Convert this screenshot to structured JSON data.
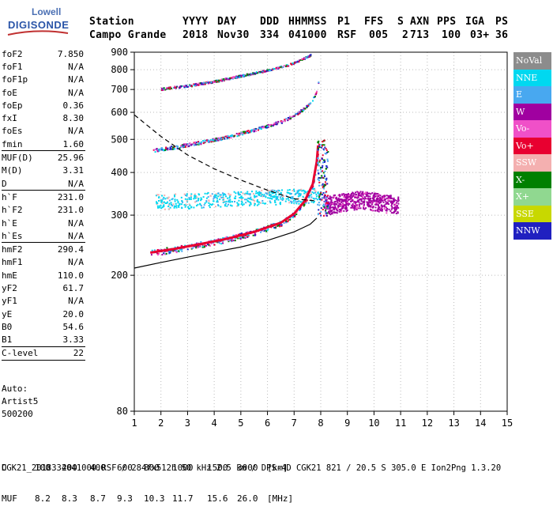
{
  "logo": {
    "line1": "Lowell",
    "line2": "DIGISONDE"
  },
  "header": {
    "labels": [
      "Station",
      "YYYY",
      "DAY",
      "DDD",
      "HHMMSS",
      "P1",
      "FFS",
      "S",
      "AXN",
      "PPS",
      "IGA",
      "PS"
    ],
    "values": [
      "Campo Grande",
      "2018",
      "Nov30",
      "334",
      "041000",
      "RSF",
      "005",
      "2",
      "713",
      "100",
      "03+",
      "36"
    ]
  },
  "params": [
    {
      "name": "foF2",
      "value": "7.850",
      "sep": false
    },
    {
      "name": "foF1",
      "value": "N/A",
      "sep": false
    },
    {
      "name": "foF1p",
      "value": "N/A",
      "sep": false
    },
    {
      "name": "foE",
      "value": "N/A",
      "sep": false
    },
    {
      "name": "foEp",
      "value": "0.36",
      "sep": false
    },
    {
      "name": "fxI",
      "value": "8.30",
      "sep": false
    },
    {
      "name": "foEs",
      "value": "N/A",
      "sep": false
    },
    {
      "name": "fmin",
      "value": "1.60",
      "sep": true
    },
    {
      "name": "MUF(D)",
      "value": "25.96",
      "sep": false
    },
    {
      "name": "M(D)",
      "value": "3.31",
      "sep": false
    },
    {
      "name": "D",
      "value": "N/A",
      "sep": true
    },
    {
      "name": "h`F",
      "value": "231.0",
      "sep": false
    },
    {
      "name": "h`F2",
      "value": "231.0",
      "sep": false
    },
    {
      "name": "h`E",
      "value": "N/A",
      "sep": false
    },
    {
      "name": "h`Es",
      "value": "N/A",
      "sep": true
    },
    {
      "name": "hmF2",
      "value": "290.4",
      "sep": false
    },
    {
      "name": "hmF1",
      "value": "N/A",
      "sep": false
    },
    {
      "name": "hmE",
      "value": "110.0",
      "sep": false
    },
    {
      "name": "yF2",
      "value": "61.7",
      "sep": false
    },
    {
      "name": "yF1",
      "value": "N/A",
      "sep": false
    },
    {
      "name": "yE",
      "value": "20.0",
      "sep": false
    },
    {
      "name": "B0",
      "value": "54.6",
      "sep": false
    },
    {
      "name": "B1",
      "value": "3.33",
      "sep": true
    },
    {
      "name": "C-level",
      "value": "22",
      "sep": true
    }
  ],
  "auto": {
    "line1": "Auto:",
    "line2": "Artist5",
    "line3": "500200"
  },
  "legend": [
    {
      "label": "NoVal",
      "color": "#8c8c8c"
    },
    {
      "label": "NNE",
      "color": "#00d8f0"
    },
    {
      "label": "E",
      "color": "#48a8f0"
    },
    {
      "label": "W",
      "color": "#a000a0"
    },
    {
      "label": "Vo-",
      "color": "#f050c8"
    },
    {
      "label": "Vo+",
      "color": "#e80030"
    },
    {
      "label": "SSW",
      "color": "#f4b0b0"
    },
    {
      "label": "X-",
      "color": "#008000"
    },
    {
      "label": "X+",
      "color": "#90d890"
    },
    {
      "label": "SSE",
      "color": "#c8d800"
    },
    {
      "label": "NNW",
      "color": "#2020c0"
    }
  ],
  "distances": {
    "d_label": "D",
    "d_values": [
      "100",
      "200",
      "400",
      "600",
      "800",
      "1000",
      "1500",
      "3000"
    ],
    "d_unit": "[km]",
    "muf_label": "MUF",
    "muf_values": [
      "8.2",
      "8.3",
      "8.7",
      "9.3",
      "10.3",
      "11.7",
      "15.6",
      "26.0"
    ],
    "muf_unit": "[MHz]"
  },
  "footer": "CGK21_2018334041000.RSF / 284fx512h 50 kHz 2.5 km / DPS-4D CGK21 821 / 20.5 S 305.0 E Ion2Png 1.3.20",
  "chart_data": {
    "type": "scatter",
    "title": "",
    "xlabel": "",
    "ylabel": "",
    "xlim": [
      1,
      15
    ],
    "ylim": [
      80,
      900
    ],
    "x_ticks": [
      1,
      2,
      3,
      4,
      5,
      6,
      7,
      8,
      9,
      10,
      11,
      12,
      13,
      14,
      15
    ],
    "y_ticks": [
      80,
      200,
      300,
      400,
      500,
      600,
      700,
      800,
      900
    ],
    "y_scale": "log",
    "grid": "dotted",
    "traces": [
      {
        "name": "o-trace F2 first hop",
        "color": "#e80030",
        "x": [
          1.6,
          2.5,
          3.5,
          4.5,
          5.5,
          6.5,
          7.0,
          7.4,
          7.7,
          7.85,
          7.9
        ],
        "y": [
          233,
          239,
          247,
          256,
          268,
          285,
          303,
          330,
          370,
          430,
          480
        ]
      },
      {
        "name": "o-trace F2 second hop",
        "color": "#48a8f0",
        "x": [
          1.7,
          2.5,
          3.5,
          4.5,
          5.5,
          6.5,
          7.0,
          7.4,
          7.7,
          7.85,
          7.9
        ],
        "y": [
          466,
          476,
          492,
          510,
          535,
          565,
          590,
          620,
          660,
          700,
          740
        ]
      },
      {
        "name": "o-trace F2 third hop",
        "color": "#d01060",
        "x": [
          2.0,
          3.0,
          4.0,
          5.0,
          6.0,
          6.8,
          7.2,
          7.6
        ],
        "y": [
          705,
          720,
          742,
          770,
          800,
          830,
          855,
          885
        ]
      },
      {
        "name": "x-trace spread",
        "color": "#a000a0",
        "x": [
          8.1,
          8.5,
          9.0,
          9.5,
          10.0,
          10.5,
          10.9
        ],
        "y": [
          320,
          325,
          330,
          335,
          330,
          325,
          322
        ]
      },
      {
        "name": "spread echoes",
        "color": "#00d8f0",
        "x": [
          1.8,
          3.0,
          4.0,
          5.0,
          6.0,
          7.0,
          8.0
        ],
        "y": [
          330,
          332,
          335,
          338,
          340,
          342,
          345
        ]
      }
    ],
    "lines": [
      {
        "name": "electron density profile",
        "style": "solid",
        "color": "#000000",
        "x": [
          1.0,
          2.0,
          3.0,
          4.0,
          5.0,
          6.0,
          7.0,
          7.6,
          7.85
        ],
        "y": [
          210,
          218,
          226,
          234,
          242,
          253,
          268,
          282,
          294
        ]
      },
      {
        "name": "MUF curve",
        "style": "dashed",
        "color": "#000000",
        "x": [
          1.0,
          2.0,
          3.0,
          4.0,
          5.0,
          6.0,
          7.0,
          7.85
        ],
        "y": [
          590,
          510,
          450,
          410,
          380,
          355,
          335,
          330
        ]
      }
    ]
  }
}
